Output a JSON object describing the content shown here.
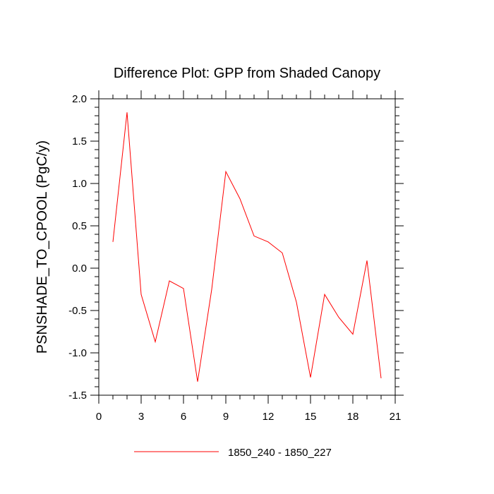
{
  "chart_data": {
    "type": "line",
    "title": "Difference Plot: GPP from Shaded Canopy",
    "xlabel": "",
    "ylabel": "PSNSHADE_TO_CPOOL  (PgC/y)",
    "xlim": [
      0,
      21
    ],
    "ylim": [
      -1.5,
      2.0
    ],
    "xticks": [
      0,
      3,
      6,
      9,
      12,
      15,
      18,
      21
    ],
    "xtick_labels": [
      "0",
      "3",
      "6",
      "9",
      "12",
      "15",
      "18",
      "21"
    ],
    "yticks": [
      -1.5,
      -1.0,
      -0.5,
      0.0,
      0.5,
      1.0,
      1.5,
      2.0
    ],
    "ytick_labels": [
      "-1.5",
      "-1.0",
      "-0.5",
      "0.0",
      "0.5",
      "1.0",
      "1.5",
      "2.0"
    ],
    "grid": false,
    "legend_position": "bottom-center",
    "series": [
      {
        "name": "1850_240 - 1850_227",
        "color": "#ff0000",
        "x": [
          1,
          2,
          3,
          4,
          5,
          6,
          7,
          8,
          9,
          10,
          11,
          12,
          13,
          14,
          15,
          16,
          17,
          18,
          19,
          20
        ],
        "values": [
          0.31,
          1.84,
          -0.31,
          -0.87,
          -0.15,
          -0.24,
          -1.34,
          -0.25,
          1.14,
          0.82,
          0.38,
          0.31,
          0.18,
          -0.4,
          -1.29,
          -0.31,
          -0.58,
          -0.78,
          0.09,
          -1.3
        ]
      }
    ]
  }
}
